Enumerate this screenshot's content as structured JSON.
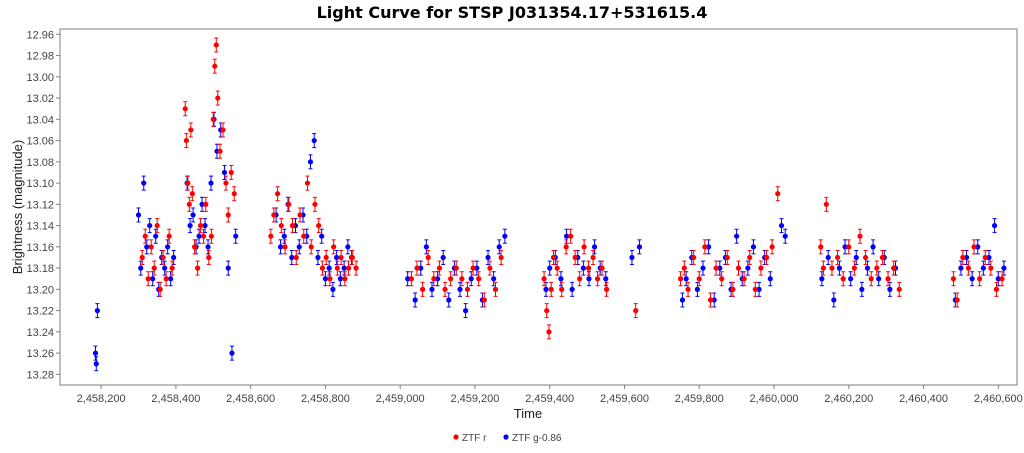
{
  "chart_data": {
    "type": "scatter",
    "title": "Light Curve for STSP J031354.17+531615.4",
    "xlabel": "Time",
    "ylabel": "Brightness (magnitude)",
    "xlim": [
      2458090,
      2460650
    ],
    "ylim": [
      12.955,
      13.29
    ],
    "y_inverted": true,
    "grid": false,
    "legend_position": "bottom-center",
    "x_ticks": [
      2458200,
      2458400,
      2458600,
      2458800,
      2459000,
      2459200,
      2459400,
      2459600,
      2459800,
      2460000,
      2460200,
      2460400,
      2460600
    ],
    "x_tick_labels": [
      "2,458,200",
      "2,458,400",
      "2,458,600",
      "2,458,800",
      "2,459,000",
      "2,459,200",
      "2,459,400",
      "2,459,600",
      "2,459,800",
      "2,460,000",
      "2,460,200",
      "2,460,400",
      "2,460,600"
    ],
    "y_ticks": [
      12.96,
      12.98,
      13.0,
      13.02,
      13.04,
      13.06,
      13.08,
      13.1,
      13.12,
      13.14,
      13.16,
      13.18,
      13.2,
      13.22,
      13.24,
      13.26,
      13.28
    ],
    "y_tick_labels": [
      "12.96",
      "12.98",
      "13.00",
      "13.02",
      "13.04",
      "13.06",
      "13.08",
      "13.10",
      "13.12",
      "13.14",
      "13.16",
      "13.18",
      "13.20",
      "13.22",
      "13.24",
      "13.26",
      "13.28"
    ],
    "series": [
      {
        "name": "ZTF r",
        "color": "#ff0000",
        "x": [
          2458310,
          2458318,
          2458326,
          2458334,
          2458342,
          2458350,
          2458358,
          2458366,
          2458374,
          2458382,
          2458390,
          2458425,
          2458428,
          2458432,
          2458436,
          2458440,
          2458444,
          2458450,
          2458458,
          2458466,
          2458474,
          2458480,
          2458488,
          2458495,
          2458500,
          2458504,
          2458508,
          2458512,
          2458518,
          2458526,
          2458534,
          2458540,
          2458548,
          2458556,
          2458654,
          2458662,
          2458672,
          2458682,
          2458692,
          2458702,
          2458712,
          2458722,
          2458732,
          2458742,
          2458752,
          2458762,
          2458772,
          2458782,
          2458792,
          2458802,
          2458812,
          2458822,
          2458832,
          2458842,
          2458852,
          2458862,
          2458872,
          2458882,
          2459030,
          2459045,
          2459060,
          2459075,
          2459090,
          2459105,
          2459120,
          2459135,
          2459150,
          2459165,
          2459180,
          2459195,
          2459210,
          2459225,
          2459240,
          2459255,
          2459270,
          2459385,
          2459392,
          2459398,
          2459404,
          2459410,
          2459420,
          2459432,
          2459444,
          2459456,
          2459468,
          2459480,
          2459492,
          2459504,
          2459516,
          2459528,
          2459540,
          2459552,
          2459630,
          2459750,
          2459760,
          2459770,
          2459785,
          2459800,
          2459815,
          2459830,
          2459845,
          2459860,
          2459875,
          2459890,
          2459905,
          2459920,
          2459935,
          2459950,
          2459965,
          2459980,
          2459995,
          2460010,
          2460125,
          2460132,
          2460140,
          2460155,
          2460170,
          2460185,
          2460200,
          2460215,
          2460230,
          2460245,
          2460260,
          2460275,
          2460290,
          2460305,
          2460320,
          2460335,
          2460480,
          2460490,
          2460505,
          2460520,
          2460535,
          2460550,
          2460565,
          2460580,
          2460595,
          2460610
        ],
        "y": [
          13.17,
          13.15,
          13.19,
          13.16,
          13.18,
          13.14,
          13.2,
          13.17,
          13.19,
          13.15,
          13.18,
          13.03,
          13.06,
          13.1,
          13.12,
          13.05,
          13.11,
          13.16,
          13.18,
          13.14,
          13.15,
          13.12,
          13.17,
          13.15,
          13.04,
          12.99,
          12.97,
          13.02,
          13.07,
          13.05,
          13.1,
          13.13,
          13.09,
          13.11,
          13.15,
          13.13,
          13.11,
          13.14,
          13.16,
          13.12,
          13.14,
          13.17,
          13.13,
          13.15,
          13.1,
          13.16,
          13.12,
          13.14,
          13.18,
          13.17,
          13.19,
          13.16,
          13.18,
          13.17,
          13.19,
          13.18,
          13.17,
          13.18,
          13.19,
          13.18,
          13.2,
          13.17,
          13.19,
          13.18,
          13.2,
          13.19,
          13.18,
          13.19,
          13.2,
          13.18,
          13.19,
          13.21,
          13.18,
          13.2,
          13.17,
          13.19,
          13.22,
          13.24,
          13.2,
          13.17,
          13.18,
          13.2,
          13.16,
          13.15,
          13.17,
          13.19,
          13.16,
          13.18,
          13.17,
          13.19,
          13.18,
          13.2,
          13.22,
          13.19,
          13.18,
          13.2,
          13.17,
          13.19,
          13.16,
          13.21,
          13.18,
          13.19,
          13.17,
          13.2,
          13.18,
          13.19,
          13.17,
          13.2,
          13.18,
          13.17,
          13.16,
          13.11,
          13.16,
          13.18,
          13.12,
          13.18,
          13.17,
          13.19,
          13.16,
          13.18,
          13.15,
          13.17,
          13.19,
          13.18,
          13.17,
          13.19,
          13.18,
          13.2,
          13.19,
          13.21,
          13.17,
          13.18,
          13.16,
          13.19,
          13.17,
          13.18,
          13.2,
          13.19
        ]
      },
      {
        "name": "ZTF g-0.86",
        "color": "#0000ff",
        "x": [
          2458185,
          2458187,
          2458190,
          2458300,
          2458306,
          2458314,
          2458322,
          2458330,
          2458338,
          2458346,
          2458354,
          2458362,
          2458370,
          2458378,
          2458386,
          2458394,
          2458430,
          2458438,
          2458446,
          2458454,
          2458462,
          2458470,
          2458478,
          2458486,
          2458494,
          2458502,
          2458510,
          2458520,
          2458530,
          2458540,
          2458550,
          2458560,
          2458668,
          2458680,
          2458690,
          2458700,
          2458710,
          2458720,
          2458730,
          2458740,
          2458750,
          2458760,
          2458770,
          2458780,
          2458790,
          2458800,
          2458810,
          2458820,
          2458830,
          2458840,
          2458850,
          2458860,
          2458870,
          2459020,
          2459040,
          2459055,
          2459070,
          2459085,
          2459100,
          2459115,
          2459130,
          2459145,
          2459160,
          2459175,
          2459190,
          2459205,
          2459220,
          2459235,
          2459250,
          2459265,
          2459280,
          2459390,
          2459400,
          2459415,
          2459430,
          2459445,
          2459460,
          2459475,
          2459490,
          2459505,
          2459520,
          2459535,
          2459550,
          2459620,
          2459640,
          2459755,
          2459765,
          2459780,
          2459795,
          2459810,
          2459825,
          2459840,
          2459855,
          2459870,
          2459885,
          2459900,
          2459915,
          2459930,
          2459945,
          2459960,
          2459975,
          2459990,
          2460020,
          2460030,
          2460128,
          2460145,
          2460160,
          2460175,
          2460190,
          2460205,
          2460220,
          2460235,
          2460250,
          2460265,
          2460280,
          2460295,
          2460310,
          2460325,
          2460485,
          2460500,
          2460515,
          2460530,
          2460545,
          2460560,
          2460575,
          2460590,
          2460600,
          2460615
        ],
        "y": [
          13.26,
          13.27,
          13.22,
          13.13,
          13.18,
          13.1,
          13.16,
          13.14,
          13.19,
          13.15,
          13.2,
          13.17,
          13.18,
          13.16,
          13.19,
          13.17,
          13.1,
          13.14,
          13.13,
          13.16,
          13.15,
          13.12,
          13.14,
          13.16,
          13.1,
          13.04,
          13.07,
          13.05,
          13.09,
          13.18,
          13.26,
          13.15,
          13.13,
          13.16,
          13.15,
          13.12,
          13.17,
          13.14,
          13.16,
          13.13,
          13.15,
          13.08,
          13.06,
          13.17,
          13.15,
          13.19,
          13.18,
          13.2,
          13.17,
          13.19,
          13.18,
          13.16,
          13.17,
          13.19,
          13.21,
          13.18,
          13.16,
          13.2,
          13.19,
          13.17,
          13.21,
          13.18,
          13.2,
          13.22,
          13.19,
          13.18,
          13.21,
          13.17,
          13.19,
          13.16,
          13.15,
          13.2,
          13.18,
          13.17,
          13.19,
          13.15,
          13.2,
          13.17,
          13.18,
          13.19,
          13.16,
          13.18,
          13.19,
          13.17,
          13.16,
          13.21,
          13.19,
          13.17,
          13.2,
          13.18,
          13.16,
          13.21,
          13.18,
          13.17,
          13.2,
          13.15,
          13.19,
          13.18,
          13.16,
          13.2,
          13.17,
          13.19,
          13.14,
          13.15,
          13.19,
          13.17,
          13.21,
          13.18,
          13.16,
          13.19,
          13.17,
          13.2,
          13.18,
          13.16,
          13.19,
          13.17,
          13.2,
          13.18,
          13.21,
          13.18,
          13.17,
          13.19,
          13.16,
          13.18,
          13.17,
          13.14,
          13.19,
          13.18
        ]
      }
    ]
  }
}
